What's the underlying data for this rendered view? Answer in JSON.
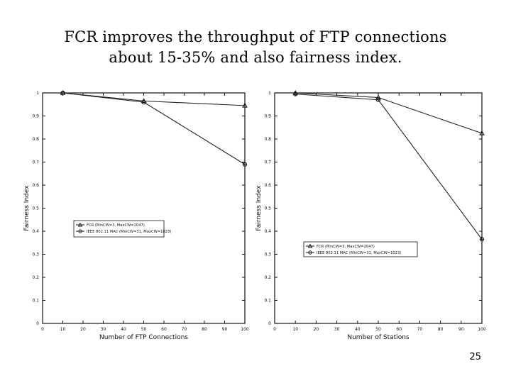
{
  "slide": {
    "title_line1": "FCR improves the throughput of FTP connections",
    "title_line2": "about 15-35% and also fairness index.",
    "page_number": "25"
  },
  "chart_data": [
    {
      "type": "line",
      "xlabel": "Number of FTP Connections",
      "ylabel": "Fairness Index",
      "xlim": [
        0,
        100
      ],
      "ylim": [
        0,
        1
      ],
      "xticks": [
        0,
        10,
        20,
        30,
        40,
        50,
        60,
        70,
        80,
        90,
        100
      ],
      "yticks": [
        0,
        0.1,
        0.2,
        0.3,
        0.4,
        0.5,
        0.6,
        0.7,
        0.8,
        0.9,
        1
      ],
      "grid": false,
      "legend_position": "center-left",
      "series": [
        {
          "name": "FCR (MinCW=3, MaxCW=2047)",
          "marker": "triangle",
          "x": [
            10,
            50,
            100
          ],
          "y": [
            1.0,
            0.965,
            0.945
          ]
        },
        {
          "name": "IEEE 802.11 MAC (MinCW=31, MaxCW=1023)",
          "marker": "circle",
          "x": [
            10,
            50,
            100
          ],
          "y": [
            1.0,
            0.96,
            0.69
          ]
        }
      ]
    },
    {
      "type": "line",
      "xlabel": "Number of Stations",
      "ylabel": "Fairness Index",
      "xlim": [
        0,
        100
      ],
      "ylim": [
        0,
        1
      ],
      "xticks": [
        0,
        10,
        20,
        30,
        40,
        50,
        60,
        70,
        80,
        90,
        100
      ],
      "yticks": [
        0,
        0.1,
        0.2,
        0.3,
        0.4,
        0.5,
        0.6,
        0.7,
        0.8,
        0.9,
        1
      ],
      "grid": false,
      "legend_position": "center-left",
      "series": [
        {
          "name": "FCR (MinCW=3, MaxCW=2047)",
          "marker": "triangle",
          "x": [
            10,
            50,
            100
          ],
          "y": [
            1.0,
            0.98,
            0.825
          ]
        },
        {
          "name": "IEEE 802.11 MAC (MinCW=31, MaxCW=1023)",
          "marker": "circle",
          "x": [
            10,
            50,
            100
          ],
          "y": [
            0.995,
            0.97,
            0.365
          ]
        }
      ]
    }
  ]
}
